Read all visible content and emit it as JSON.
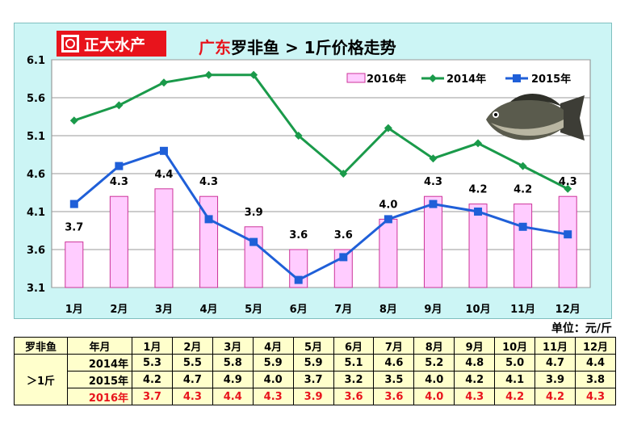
{
  "logo": {
    "text": "正大水产",
    "icon": "brand-mark-icon"
  },
  "title": {
    "region": "广东",
    "rest": "罗非鱼 > 1斤价格走势"
  },
  "unit_label": "单位：元/斤",
  "colors": {
    "bar_fill": "#ffccff",
    "bar_stroke": "#cc3399",
    "line_2014": "#1a9a4a",
    "line_2015": "#1f5fd8",
    "accent_red": "#e8141c",
    "plot_bg": "#ffffff",
    "panel_bg": "#ccf5f5",
    "table_bg": "#ffffcc"
  },
  "chart_data": {
    "type": "bar",
    "categories": [
      "1月",
      "2月",
      "3月",
      "4月",
      "5月",
      "6月",
      "7月",
      "8月",
      "9月",
      "10月",
      "11月",
      "12月"
    ],
    "series": [
      {
        "name": "2016年",
        "type": "bar",
        "values": [
          3.7,
          4.3,
          4.4,
          4.3,
          3.9,
          3.6,
          3.6,
          4.0,
          4.3,
          4.2,
          4.2,
          4.3
        ],
        "data_labels": [
          "3.7",
          "4.3",
          "4.4",
          "4.3",
          "3.9",
          "3.6",
          "3.6",
          "4.0",
          "4.3",
          "4.2",
          "4.2",
          "4.3"
        ]
      },
      {
        "name": "2014年",
        "type": "line",
        "marker": "diamond",
        "values": [
          5.3,
          5.5,
          5.8,
          5.9,
          5.9,
          5.1,
          4.6,
          5.2,
          4.8,
          5.0,
          4.7,
          4.4
        ]
      },
      {
        "name": "2015年",
        "type": "line",
        "marker": "square",
        "values": [
          4.2,
          4.7,
          4.9,
          4.0,
          3.7,
          3.2,
          3.5,
          4.0,
          4.2,
          4.1,
          3.9,
          3.8
        ]
      }
    ],
    "ylim": [
      3.1,
      6.1
    ],
    "yticks": [
      "6.1",
      "5.6",
      "5.1",
      "4.6",
      "4.1",
      "3.6",
      "3.1"
    ],
    "ytick_values": [
      6.1,
      5.6,
      5.1,
      4.6,
      4.1,
      3.6,
      3.1
    ],
    "grid": true,
    "legend_position": "top-right"
  },
  "table": {
    "corner": "罗非鱼",
    "month_header": "年月",
    "row_group": "＞1斤",
    "rows": [
      {
        "year": "2014年",
        "values": [
          "5.3",
          "5.5",
          "5.8",
          "5.9",
          "5.9",
          "5.1",
          "4.6",
          "5.2",
          "4.8",
          "5.0",
          "4.7",
          "4.4"
        ]
      },
      {
        "year": "2015年",
        "values": [
          "4.2",
          "4.7",
          "4.9",
          "4.0",
          "3.7",
          "3.2",
          "3.5",
          "4.0",
          "4.2",
          "4.1",
          "3.9",
          "3.8"
        ]
      },
      {
        "year": "2016年",
        "values": [
          "3.7",
          "4.3",
          "4.4",
          "4.3",
          "3.9",
          "3.6",
          "3.6",
          "4.0",
          "4.3",
          "4.2",
          "4.2",
          "4.3"
        ]
      }
    ]
  }
}
